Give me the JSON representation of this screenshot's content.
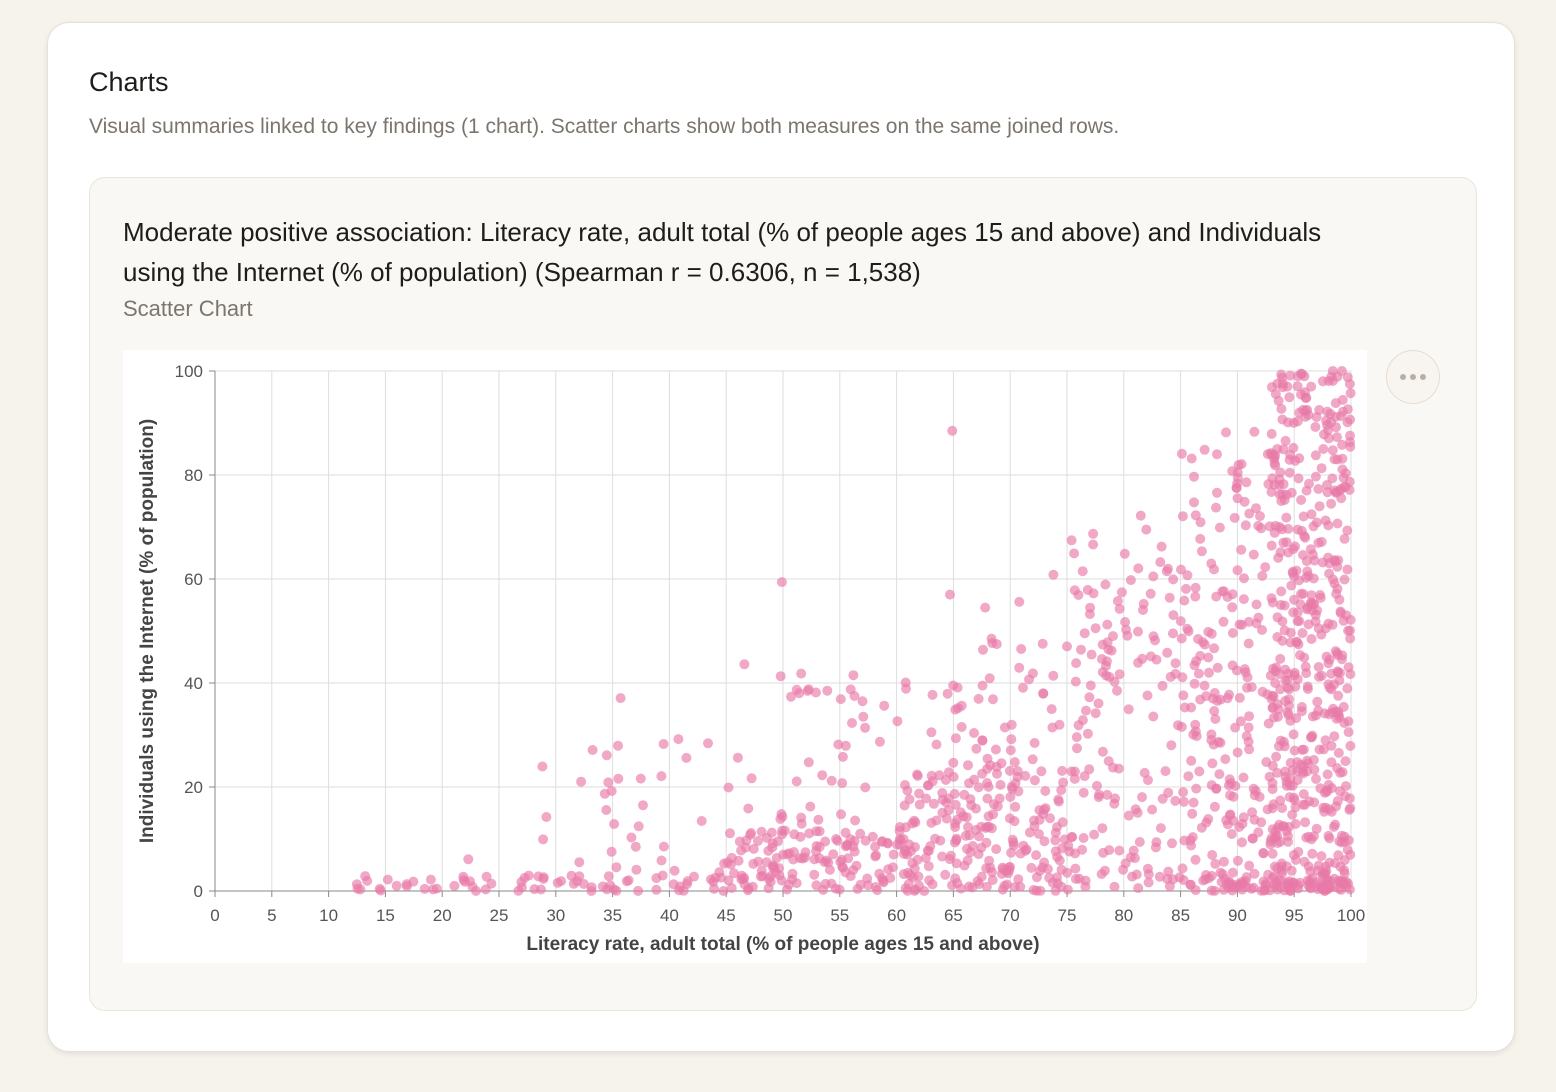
{
  "section": {
    "title": "Charts",
    "subtitle": "Visual summaries linked to key findings (1 chart). Scatter charts show both measures on the same joined rows."
  },
  "chart_card": {
    "heading": "Moderate positive association: Literacy rate, adult total (% of people ages 15 and above) and Individuals using the Internet (% of population) (Spearman r = 0.6306, n = 1,538)",
    "type_label": "Scatter Chart",
    "more_icon": "ellipsis-icon"
  },
  "chart_data": {
    "type": "scatter",
    "xlabel": "Literacy rate, adult total (% of people ages 15 and above)",
    "ylabel": "Individuals using the Internet (% of population)",
    "xlim": [
      0,
      100
    ],
    "ylim": [
      0,
      100
    ],
    "x_ticks": [
      0,
      5,
      10,
      15,
      20,
      25,
      30,
      35,
      40,
      45,
      50,
      55,
      60,
      65,
      70,
      75,
      80,
      85,
      90,
      95,
      100
    ],
    "y_ticks": [
      0,
      20,
      40,
      60,
      80,
      100
    ],
    "grid": true,
    "point_color": "#e879a8",
    "n": 1538,
    "spearman_r": 0.6306,
    "clusters": [
      {
        "x_range": [
          12,
          45
        ],
        "y_range": [
          0,
          3
        ],
        "count": 60
      },
      {
        "x_range": [
          28,
          50
        ],
        "y_range": [
          0,
          30
        ],
        "count": 50
      },
      {
        "x_range": [
          45,
          62
        ],
        "y_range": [
          0,
          12
        ],
        "count": 120
      },
      {
        "x_range": [
          50,
          65
        ],
        "y_range": [
          0,
          40
        ],
        "count": 70
      },
      {
        "x_range": [
          60,
          75
        ],
        "y_range": [
          0,
          25
        ],
        "count": 150
      },
      {
        "x_range": [
          65,
          80
        ],
        "y_range": [
          0,
          50
        ],
        "count": 120
      },
      {
        "x_range": [
          75,
          88
        ],
        "y_range": [
          0,
          70
        ],
        "count": 140
      },
      {
        "x_range": [
          85,
          95
        ],
        "y_range": [
          0,
          85
        ],
        "count": 230
      },
      {
        "x_range": [
          93,
          100
        ],
        "y_range": [
          0,
          100
        ],
        "count": 450
      },
      {
        "x_range": [
          88,
          100
        ],
        "y_range": [
          0,
          2
        ],
        "count": 60
      }
    ],
    "points": [
      [
        12.8,
        0.3
      ],
      [
        14.5,
        0.4
      ],
      [
        19.2,
        0.3
      ],
      [
        22.3,
        6.1
      ],
      [
        35.7,
        37.1
      ],
      [
        35.5,
        21.6
      ],
      [
        39.3,
        22.1
      ],
      [
        41.5,
        25.6
      ],
      [
        43.4,
        28.4
      ],
      [
        46.6,
        43.6
      ],
      [
        49.9,
        59.4
      ],
      [
        49.8,
        41.3
      ],
      [
        51.6,
        41.8
      ],
      [
        56.2,
        41.5
      ],
      [
        57.0,
        36.5
      ],
      [
        60.8,
        40.1
      ],
      [
        64.7,
        57.0
      ],
      [
        64.9,
        88.5
      ],
      [
        67.8,
        54.5
      ],
      [
        70.8,
        55.6
      ],
      [
        73.8,
        60.8
      ],
      [
        77.3,
        68.7
      ],
      [
        81.5,
        72.2
      ],
      [
        82.6,
        60.5
      ],
      [
        89.0,
        88.2
      ],
      [
        88.2,
        84.0
      ],
      [
        91.5,
        88.3
      ],
      [
        95.9,
        99.0
      ],
      [
        98.4,
        100
      ],
      [
        99.9,
        97.5
      ],
      [
        98.8,
        98.9
      ],
      [
        99.2,
        100
      ],
      [
        96.5,
        97.0
      ],
      [
        93.5,
        85.0
      ],
      [
        97.2,
        92.5
      ]
    ]
  }
}
